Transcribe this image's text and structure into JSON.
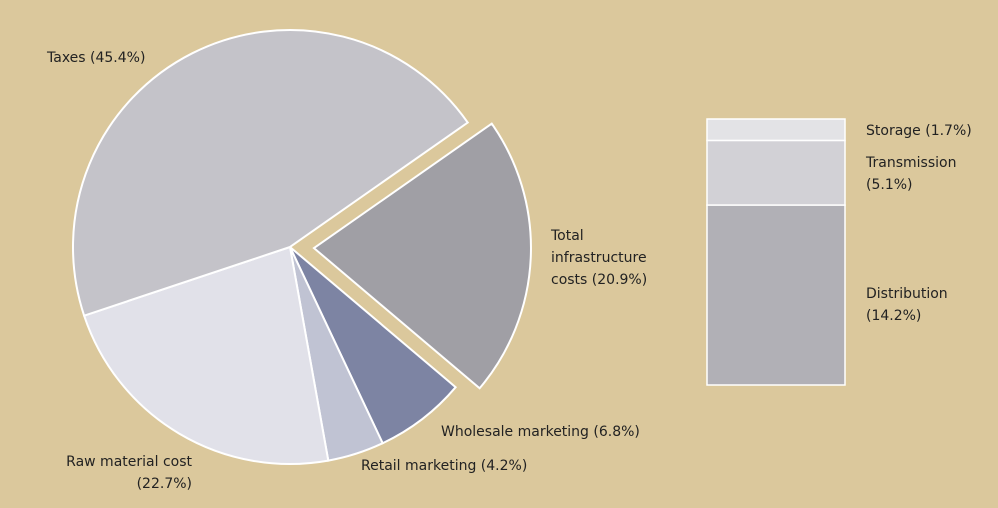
{
  "chart_data": [
    {
      "type": "pie",
      "categories": [
        "Total infrastructure costs",
        "Wholesale marketing",
        "Retail marketing",
        "Raw material cost",
        "Taxes"
      ],
      "values": [
        20.9,
        6.8,
        4.2,
        22.7,
        45.4
      ],
      "value_labels": [
        "(20.9%)",
        "(6.8%)",
        "(4.2%)",
        "(22.7%)",
        "(45.4%)"
      ],
      "colors": [
        "#a09fa5",
        "#7d84a3",
        "#c0c3d3",
        "#e1e1e9",
        "#c4c3c9"
      ],
      "exploded": [
        true,
        false,
        false,
        false,
        false
      ]
    },
    {
      "type": "stacked-bar",
      "categories": [
        "Storage",
        "Transmission",
        "Distribution"
      ],
      "values": [
        1.7,
        5.1,
        14.2
      ],
      "value_labels": [
        "(1.7%)",
        "(5.1%)",
        "(14.2%)"
      ],
      "colors": [
        "#e3e3e6",
        "#d2d1d6",
        "#b1b0b6"
      ]
    }
  ]
}
